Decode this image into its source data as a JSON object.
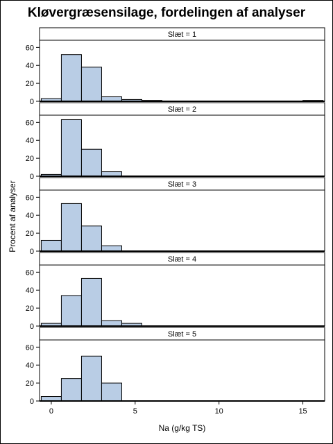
{
  "chart_data": {
    "type": "bar",
    "title": "Kløvergræsensilage, fordelingen af analyser",
    "xlabel": "Na (g/kg TS)",
    "ylabel": "Procent af analyser",
    "xlim": [
      -0.7,
      16.3
    ],
    "ylim": [
      0,
      68
    ],
    "x_ticks": [
      0,
      5,
      10,
      15
    ],
    "y_ticks": [
      0,
      20,
      40,
      60
    ],
    "bin_width": 1.2,
    "bin_start": -0.6,
    "bar_color": "#b9cde5",
    "bar_edge_color": "#000000",
    "panels": [
      {
        "label": "Slæt = 1",
        "bins": [
          {
            "x": -0.6,
            "value": 3
          },
          {
            "x": 0.6,
            "value": 52
          },
          {
            "x": 1.8,
            "value": 38
          },
          {
            "x": 3.0,
            "value": 5
          },
          {
            "x": 4.2,
            "value": 2
          },
          {
            "x": 5.4,
            "value": 1
          },
          {
            "x": 15.0,
            "value": 1
          }
        ]
      },
      {
        "label": "Slæt = 2",
        "bins": [
          {
            "x": -0.6,
            "value": 2
          },
          {
            "x": 0.6,
            "value": 63
          },
          {
            "x": 1.8,
            "value": 30
          },
          {
            "x": 3.0,
            "value": 5
          }
        ]
      },
      {
        "label": "Slæt = 3",
        "bins": [
          {
            "x": -0.6,
            "value": 12
          },
          {
            "x": 0.6,
            "value": 53
          },
          {
            "x": 1.8,
            "value": 28
          },
          {
            "x": 3.0,
            "value": 6
          }
        ]
      },
      {
        "label": "Slæt = 4",
        "bins": [
          {
            "x": -0.6,
            "value": 3
          },
          {
            "x": 0.6,
            "value": 34
          },
          {
            "x": 1.8,
            "value": 53
          },
          {
            "x": 3.0,
            "value": 6
          },
          {
            "x": 4.2,
            "value": 3
          }
        ]
      },
      {
        "label": "Slæt = 5",
        "bins": [
          {
            "x": -0.6,
            "value": 5
          },
          {
            "x": 0.6,
            "value": 25
          },
          {
            "x": 1.8,
            "value": 50
          },
          {
            "x": 3.0,
            "value": 20
          }
        ]
      }
    ]
  }
}
